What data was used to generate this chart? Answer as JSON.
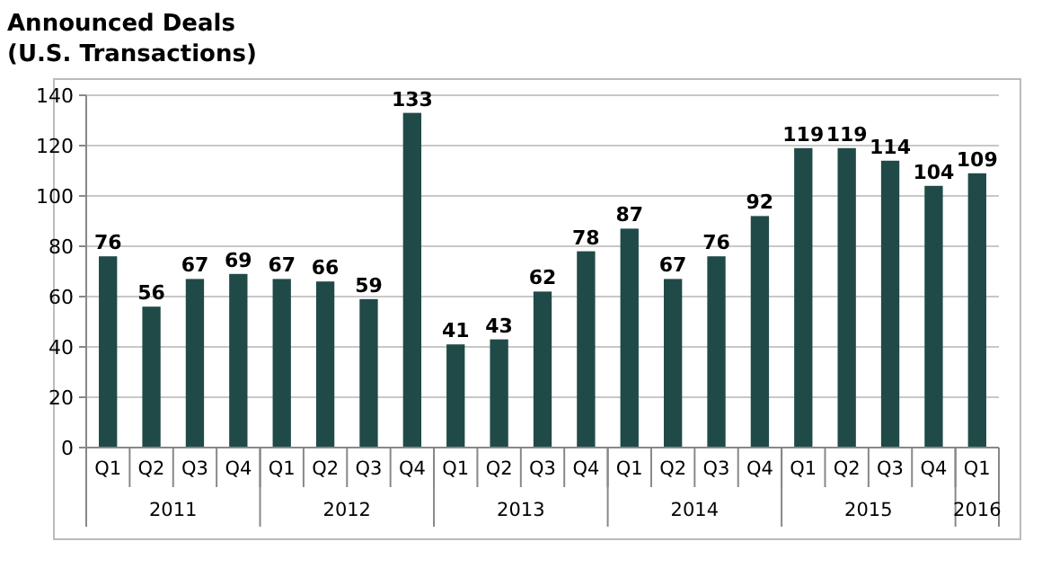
{
  "chart_data": {
    "type": "bar",
    "title": "Announced Deals",
    "subtitle": "(U.S. Transactions)",
    "categories": [
      "Q1",
      "Q2",
      "Q3",
      "Q4",
      "Q1",
      "Q2",
      "Q3",
      "Q4",
      "Q1",
      "Q2",
      "Q3",
      "Q4",
      "Q1",
      "Q2",
      "Q3",
      "Q4",
      "Q1",
      "Q2",
      "Q3",
      "Q4",
      "Q1"
    ],
    "values": [
      76,
      56,
      67,
      69,
      67,
      66,
      59,
      133,
      41,
      43,
      62,
      78,
      87,
      67,
      76,
      92,
      119,
      119,
      114,
      104,
      109
    ],
    "color": "#1f4a48",
    "ylim": [
      0,
      140
    ],
    "yticks": [
      0,
      20,
      40,
      60,
      80,
      100,
      120,
      140
    ],
    "grid": "y",
    "data_labels": true,
    "annotations": [
      "2011",
      "2012",
      "2013",
      "2014",
      "2015",
      "2016"
    ]
  }
}
